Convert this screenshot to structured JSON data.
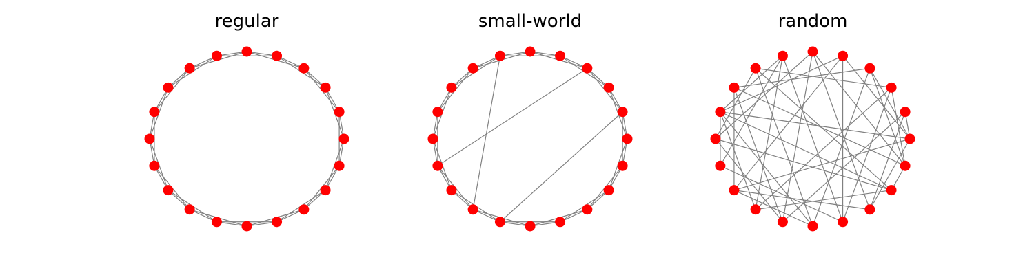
{
  "colors": {
    "node": "#ff0000",
    "edge": "#808080",
    "background": "#ffffff"
  },
  "graphs": [
    {
      "title": "regular",
      "node_count": 20,
      "edges": [
        [
          0,
          1
        ],
        [
          1,
          2
        ],
        [
          2,
          3
        ],
        [
          3,
          4
        ],
        [
          4,
          5
        ],
        [
          5,
          6
        ],
        [
          6,
          7
        ],
        [
          7,
          8
        ],
        [
          8,
          9
        ],
        [
          9,
          10
        ],
        [
          10,
          11
        ],
        [
          11,
          12
        ],
        [
          12,
          13
        ],
        [
          13,
          14
        ],
        [
          14,
          15
        ],
        [
          15,
          16
        ],
        [
          16,
          17
        ],
        [
          17,
          18
        ],
        [
          18,
          19
        ],
        [
          19,
          0
        ],
        [
          0,
          2
        ],
        [
          1,
          3
        ],
        [
          2,
          4
        ],
        [
          3,
          5
        ],
        [
          4,
          6
        ],
        [
          5,
          7
        ],
        [
          6,
          8
        ],
        [
          7,
          9
        ],
        [
          8,
          10
        ],
        [
          9,
          11
        ],
        [
          10,
          12
        ],
        [
          11,
          13
        ],
        [
          12,
          14
        ],
        [
          13,
          15
        ],
        [
          14,
          16
        ],
        [
          15,
          17
        ],
        [
          16,
          18
        ],
        [
          17,
          19
        ],
        [
          18,
          0
        ],
        [
          19,
          1
        ]
      ]
    },
    {
      "title": "small-world",
      "node_count": 20,
      "edges": [
        [
          0,
          1
        ],
        [
          1,
          2
        ],
        [
          2,
          3
        ],
        [
          3,
          4
        ],
        [
          4,
          5
        ],
        [
          5,
          6
        ],
        [
          6,
          7
        ],
        [
          7,
          8
        ],
        [
          8,
          9
        ],
        [
          9,
          10
        ],
        [
          10,
          11
        ],
        [
          11,
          12
        ],
        [
          12,
          13
        ],
        [
          13,
          14
        ],
        [
          14,
          15
        ],
        [
          15,
          16
        ],
        [
          16,
          17
        ],
        [
          17,
          18
        ],
        [
          18,
          19
        ],
        [
          19,
          0
        ],
        [
          0,
          2
        ],
        [
          1,
          3
        ],
        [
          2,
          4
        ],
        [
          3,
          5
        ],
        [
          4,
          6
        ],
        [
          5,
          7
        ],
        [
          6,
          8
        ],
        [
          7,
          9
        ],
        [
          8,
          10
        ],
        [
          9,
          11
        ],
        [
          10,
          12
        ],
        [
          11,
          13
        ],
        [
          12,
          14
        ],
        [
          13,
          15
        ],
        [
          14,
          16
        ],
        [
          15,
          17
        ],
        [
          16,
          18
        ],
        [
          17,
          19
        ],
        [
          18,
          0
        ],
        [
          19,
          1
        ],
        [
          1,
          14
        ],
        [
          3,
          11
        ],
        [
          13,
          6
        ]
      ]
    },
    {
      "title": "random",
      "node_count": 20,
      "edges": [
        [
          0,
          1
        ],
        [
          0,
          9
        ],
        [
          0,
          12
        ],
        [
          0,
          3
        ],
        [
          0,
          17
        ],
        [
          0,
          4
        ],
        [
          19,
          2
        ],
        [
          19,
          8
        ],
        [
          19,
          18
        ],
        [
          19,
          5
        ],
        [
          19,
          3
        ],
        [
          18,
          7
        ],
        [
          18,
          10
        ],
        [
          18,
          13
        ],
        [
          18,
          9
        ],
        [
          17,
          1
        ],
        [
          17,
          12
        ],
        [
          17,
          5
        ],
        [
          16,
          6
        ],
        [
          16,
          2
        ],
        [
          16,
          4
        ],
        [
          16,
          11
        ],
        [
          15,
          3
        ],
        [
          15,
          7
        ],
        [
          15,
          12
        ],
        [
          15,
          9
        ],
        [
          14,
          5
        ],
        [
          14,
          8
        ],
        [
          14,
          1
        ],
        [
          14,
          10
        ],
        [
          13,
          2
        ],
        [
          13,
          6
        ],
        [
          13,
          9
        ],
        [
          12,
          4
        ],
        [
          12,
          8
        ],
        [
          11,
          6
        ],
        [
          11,
          9
        ],
        [
          10,
          5
        ],
        [
          10,
          7
        ],
        [
          2,
          7
        ],
        [
          3,
          8
        ],
        [
          4,
          9
        ],
        [
          6,
          9
        ]
      ]
    }
  ]
}
